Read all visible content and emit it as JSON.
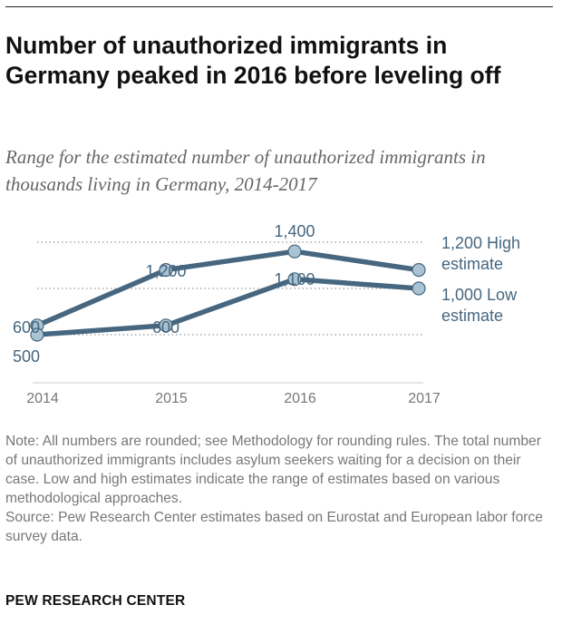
{
  "title": "Number of unauthorized immigrants in Germany peaked in 2016 before leveling off",
  "subtitle": "Range for the estimated number of unauthorized immigrants in thousands living in Germany, 2014-2017",
  "notes": [
    "Note: All numbers are rounded; see Methodology for rounding rules. The total number of unauthorized immigrants includes asylum seekers waiting for a decision on their case. Low and high estimates indicate the range of estimates based on various methodological approaches.",
    "Source: Pew Research Center estimates based on Eurostat and European labor force survey data."
  ],
  "brand": "PEW RESEARCH CENTER",
  "colors": {
    "line": "#46677f",
    "marker": "#a9c3d3",
    "label": "#46677f",
    "axis": "#777777"
  },
  "chart_data": {
    "type": "line",
    "x": [
      "2014",
      "2015",
      "2016",
      "2017"
    ],
    "ylim": [
      0,
      1500
    ],
    "gridlines": [
      500,
      1000,
      1500
    ],
    "series": [
      {
        "name": "High estimate",
        "values": [
          600,
          1200,
          1400,
          1200
        ],
        "labels": [
          "600",
          "1,200",
          "1,400",
          ""
        ],
        "end_label": [
          "1,200 High",
          "estimate"
        ]
      },
      {
        "name": "Low estimate",
        "values": [
          500,
          600,
          1100,
          1000
        ],
        "labels": [
          "500",
          "600",
          "1,100",
          ""
        ],
        "end_label": [
          "1,000 Low",
          "estimate"
        ]
      }
    ]
  }
}
